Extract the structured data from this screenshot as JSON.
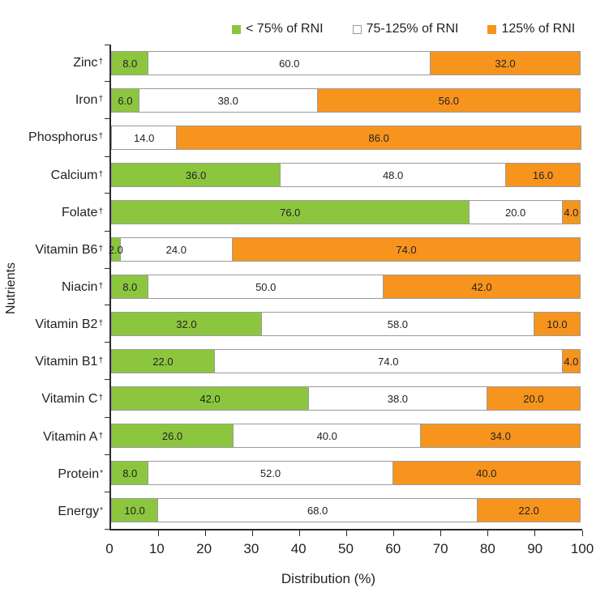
{
  "colors": {
    "green": "#8CC63F",
    "white": "#FFFFFF",
    "orange": "#F7941E",
    "segment_border": "#9B9B9B",
    "axis": "#2A2A2A",
    "text": "#231F20"
  },
  "chart_data": {
    "type": "bar",
    "orientation": "horizontal",
    "stacked": true,
    "title": "",
    "xlabel": "Distribution (%)",
    "ylabel": "Nutrients",
    "xlim": [
      0,
      100
    ],
    "xticks": [
      0,
      10,
      20,
      30,
      40,
      50,
      60,
      70,
      80,
      90,
      100
    ],
    "legend_position": "top",
    "grid": false,
    "value_labels": "one_decimal",
    "categories": [
      "Zinc†",
      "Iron†",
      "Phosphorus†",
      "Calcium†",
      "Folate†",
      "Vitamin B6†",
      "Niacin†",
      "Vitamin B2†",
      "Vitamin B1†",
      "Vitamin C†",
      "Vitamin A†",
      "Protein*",
      "Energy*"
    ],
    "series": [
      {
        "name": "< 75% of RNI",
        "color": "#8CC63F",
        "values": [
          8,
          6,
          0,
          36,
          76,
          2,
          8,
          32,
          22,
          42,
          26,
          8,
          10
        ]
      },
      {
        "name": "75-125% of RNI",
        "color": "#FFFFFF",
        "values": [
          60,
          38,
          14,
          48,
          20,
          24,
          50,
          58,
          74,
          38,
          40,
          52,
          68
        ]
      },
      {
        "name": "125% of RNI",
        "color": "#F7941E",
        "values": [
          32,
          56,
          86,
          16,
          4,
          74,
          42,
          10,
          4,
          20,
          34,
          40,
          22
        ]
      }
    ]
  }
}
